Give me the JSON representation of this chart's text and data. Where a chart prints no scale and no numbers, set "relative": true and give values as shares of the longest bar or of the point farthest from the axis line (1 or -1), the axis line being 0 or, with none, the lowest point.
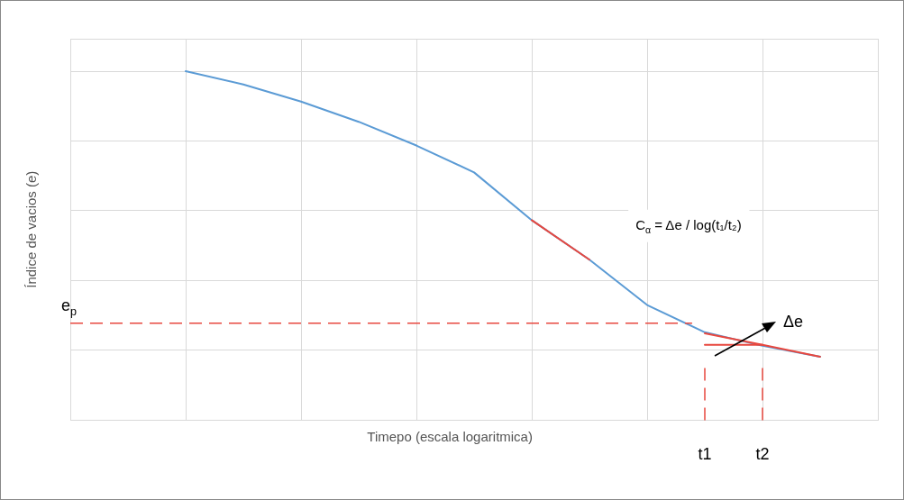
{
  "chart_data": {
    "type": "line",
    "relative": true,
    "xlabel": "Timepo (escala logaritmica)",
    "ylabel": "Índice de vacios (e)",
    "categories": [
      null,
      null,
      null,
      null,
      null,
      null,
      null,
      null,
      null,
      null,
      null,
      "t1",
      "t2",
      null,
      null
    ],
    "tick_labels": "x",
    "grid": true,
    "legend": false,
    "marker": "none",
    "series": [
      {
        "color": "#5b9bd5",
        "values": [
          null,
          null,
          1.0,
          0.962,
          0.913,
          0.855,
          0.787,
          0.71,
          0.573,
          0.46,
          0.33,
          0.252,
          0.213,
          0.182,
          null
        ]
      },
      {
        "color": "#e8483f",
        "values": [
          null,
          null,
          null,
          null,
          null,
          null,
          null,
          null,
          0.573,
          0.46,
          null,
          null,
          null,
          null,
          null
        ]
      },
      {
        "color": "#e8483f",
        "values": [
          null,
          null,
          null,
          null,
          null,
          null,
          null,
          null,
          null,
          null,
          null,
          0.249,
          0.216,
          0.182,
          null
        ]
      },
      {
        "color": "#e8483f",
        "values": [
          null,
          null,
          null,
          null,
          null,
          null,
          null,
          null,
          null,
          null,
          null,
          0.216,
          0.216,
          null,
          null
        ]
      }
    ],
    "ref_lines": [
      {
        "axis": "y",
        "value": 0.278,
        "label": "e$_{p}$",
        "color": "#e8483f",
        "line_style": "dashed"
      },
      {
        "axis": "x",
        "value": "t1",
        "color": "#e8483f",
        "line_style": "dashed"
      },
      {
        "axis": "x",
        "value": "t2",
        "color": "#e8483f",
        "line_style": "dashed"
      }
    ],
    "annotations": [
      "C$_{α}$ = Δe / log(t₁/t₂)",
      "Δe"
    ]
  }
}
